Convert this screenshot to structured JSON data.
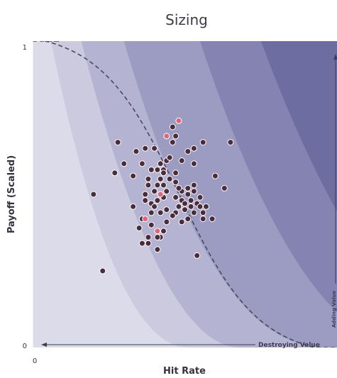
{
  "chart_data": {
    "type": "scatter",
    "title": "Sizing",
    "xlabel": "Hit Rate",
    "ylabel": "Payoff (Scaled)",
    "x_ticks": [
      "0"
    ],
    "y_ticks": [
      "0",
      "1"
    ],
    "xlim": [
      0,
      1
    ],
    "ylim": [
      0,
      1
    ],
    "grid": false,
    "annotations": {
      "destroying": "Destroying Value",
      "adding": "Adding Value"
    },
    "colors": {
      "point": "#4a2c3a",
      "highlight": "#e0647a",
      "band1": "#dcdbe9",
      "band2": "#cbcadf",
      "band3": "#b4b3d1",
      "band4": "#9c9bc2",
      "band5": "#8483b2",
      "band6": "#6e6da2",
      "boundary": "#4a4a5c"
    },
    "series": [
      {
        "values": [
          {
            "x": 0.28,
            "y": 0.67
          },
          {
            "x": 0.37,
            "y": 0.65
          },
          {
            "x": 0.34,
            "y": 0.64
          },
          {
            "x": 0.27,
            "y": 0.57
          },
          {
            "x": 0.4,
            "y": 0.65
          },
          {
            "x": 0.36,
            "y": 0.6
          },
          {
            "x": 0.39,
            "y": 0.58
          },
          {
            "x": 0.42,
            "y": 0.6
          },
          {
            "x": 0.44,
            "y": 0.61
          },
          {
            "x": 0.46,
            "y": 0.67
          },
          {
            "x": 0.51,
            "y": 0.64
          },
          {
            "x": 0.53,
            "y": 0.6
          },
          {
            "x": 0.43,
            "y": 0.58
          },
          {
            "x": 0.47,
            "y": 0.57
          },
          {
            "x": 0.45,
            "y": 0.55
          },
          {
            "x": 0.47,
            "y": 0.54
          },
          {
            "x": 0.43,
            "y": 0.53
          },
          {
            "x": 0.33,
            "y": 0.56
          },
          {
            "x": 0.38,
            "y": 0.55
          },
          {
            "x": 0.42,
            "y": 0.55
          },
          {
            "x": 0.41,
            "y": 0.53
          },
          {
            "x": 0.38,
            "y": 0.53
          },
          {
            "x": 0.4,
            "y": 0.51
          },
          {
            "x": 0.44,
            "y": 0.51
          },
          {
            "x": 0.49,
            "y": 0.51
          },
          {
            "x": 0.51,
            "y": 0.52
          },
          {
            "x": 0.53,
            "y": 0.51
          },
          {
            "x": 0.55,
            "y": 0.49
          },
          {
            "x": 0.6,
            "y": 0.56
          },
          {
            "x": 0.51,
            "y": 0.5
          },
          {
            "x": 0.47,
            "y": 0.49
          },
          {
            "x": 0.43,
            "y": 0.49
          },
          {
            "x": 0.41,
            "y": 0.48
          },
          {
            "x": 0.39,
            "y": 0.47
          },
          {
            "x": 0.37,
            "y": 0.5
          },
          {
            "x": 0.37,
            "y": 0.48
          },
          {
            "x": 0.49,
            "y": 0.48
          },
          {
            "x": 0.52,
            "y": 0.48
          },
          {
            "x": 0.54,
            "y": 0.47
          },
          {
            "x": 0.44,
            "y": 0.45
          },
          {
            "x": 0.4,
            "y": 0.46
          },
          {
            "x": 0.48,
            "y": 0.46
          },
          {
            "x": 0.52,
            "y": 0.46
          },
          {
            "x": 0.55,
            "y": 0.46
          },
          {
            "x": 0.57,
            "y": 0.46
          },
          {
            "x": 0.42,
            "y": 0.44
          },
          {
            "x": 0.47,
            "y": 0.44
          },
          {
            "x": 0.5,
            "y": 0.45
          },
          {
            "x": 0.53,
            "y": 0.44
          },
          {
            "x": 0.56,
            "y": 0.44
          },
          {
            "x": 0.63,
            "y": 0.52
          },
          {
            "x": 0.33,
            "y": 0.46
          },
          {
            "x": 0.39,
            "y": 0.44
          },
          {
            "x": 0.36,
            "y": 0.42
          },
          {
            "x": 0.46,
            "y": 0.43
          },
          {
            "x": 0.51,
            "y": 0.42
          },
          {
            "x": 0.56,
            "y": 0.42
          },
          {
            "x": 0.59,
            "y": 0.42
          },
          {
            "x": 0.49,
            "y": 0.41
          },
          {
            "x": 0.44,
            "y": 0.41
          },
          {
            "x": 0.43,
            "y": 0.38
          },
          {
            "x": 0.38,
            "y": 0.36
          },
          {
            "x": 0.42,
            "y": 0.36
          },
          {
            "x": 0.36,
            "y": 0.34
          },
          {
            "x": 0.41,
            "y": 0.32
          },
          {
            "x": 0.65,
            "y": 0.67
          },
          {
            "x": 0.56,
            "y": 0.67
          },
          {
            "x": 0.54,
            "y": 0.3
          },
          {
            "x": 0.41,
            "y": 0.36
          },
          {
            "x": 0.39,
            "y": 0.4
          },
          {
            "x": 0.53,
            "y": 0.53
          },
          {
            "x": 0.23,
            "y": 0.25
          },
          {
            "x": 0.53,
            "y": 0.65
          },
          {
            "x": 0.49,
            "y": 0.61
          },
          {
            "x": 0.45,
            "y": 0.62
          },
          {
            "x": 0.35,
            "y": 0.39
          },
          {
            "x": 0.46,
            "y": 0.72
          },
          {
            "x": 0.38,
            "y": 0.34
          },
          {
            "x": 0.3,
            "y": 0.6
          },
          {
            "x": 0.41,
            "y": 0.58
          },
          {
            "x": 0.5,
            "y": 0.47
          },
          {
            "x": 0.47,
            "y": 0.69
          },
          {
            "x": 0.43,
            "y": 0.57
          },
          {
            "x": 0.2,
            "y": 0.5
          },
          {
            "x": 0.48,
            "y": 0.52
          }
        ]
      },
      {
        "highlight": true,
        "values": [
          {
            "x": 0.48,
            "y": 0.74
          },
          {
            "x": 0.44,
            "y": 0.69
          },
          {
            "x": 0.42,
            "y": 0.5
          },
          {
            "x": 0.37,
            "y": 0.42
          },
          {
            "x": 0.41,
            "y": 0.38
          }
        ]
      }
    ]
  }
}
